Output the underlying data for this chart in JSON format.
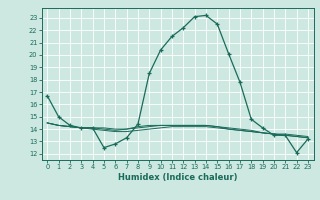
{
  "xlabel": "Humidex (Indice chaleur)",
  "ylabel": "",
  "bg_color": "#cce8e0",
  "line_color": "#1a6b5a",
  "grid_color": "#ffffff",
  "x_ticks": [
    0,
    1,
    2,
    3,
    4,
    5,
    6,
    7,
    8,
    9,
    10,
    11,
    12,
    13,
    14,
    15,
    16,
    17,
    18,
    19,
    20,
    21,
    22,
    23
  ],
  "y_ticks": [
    12,
    13,
    14,
    15,
    16,
    17,
    18,
    19,
    20,
    21,
    22,
    23
  ],
  "xlim": [
    -0.5,
    23.5
  ],
  "ylim": [
    11.5,
    23.8
  ],
  "series": [
    [
      16.7,
      15.0,
      14.3,
      14.1,
      14.1,
      12.5,
      12.8,
      13.3,
      14.4,
      18.5,
      20.4,
      21.5,
      22.2,
      23.1,
      23.2,
      22.5,
      20.1,
      17.8,
      14.8,
      14.1,
      13.5,
      13.5,
      12.1,
      13.2
    ],
    [
      14.5,
      14.3,
      14.2,
      14.1,
      14.1,
      14.0,
      13.9,
      14.0,
      14.2,
      14.3,
      14.3,
      14.3,
      14.3,
      14.3,
      14.3,
      14.2,
      14.0,
      13.9,
      13.8,
      13.7,
      13.6,
      13.5,
      13.4,
      13.3
    ],
    [
      14.5,
      14.3,
      14.2,
      14.1,
      14.1,
      14.1,
      14.0,
      14.0,
      14.1,
      14.2,
      14.3,
      14.3,
      14.3,
      14.3,
      14.3,
      14.2,
      14.1,
      14.0,
      13.9,
      13.7,
      13.6,
      13.6,
      13.5,
      13.4
    ],
    [
      14.5,
      14.3,
      14.2,
      14.1,
      14.0,
      13.9,
      13.8,
      13.8,
      13.9,
      14.0,
      14.1,
      14.2,
      14.2,
      14.2,
      14.2,
      14.1,
      14.0,
      13.9,
      13.8,
      13.7,
      13.6,
      13.5,
      13.4,
      13.3
    ]
  ]
}
